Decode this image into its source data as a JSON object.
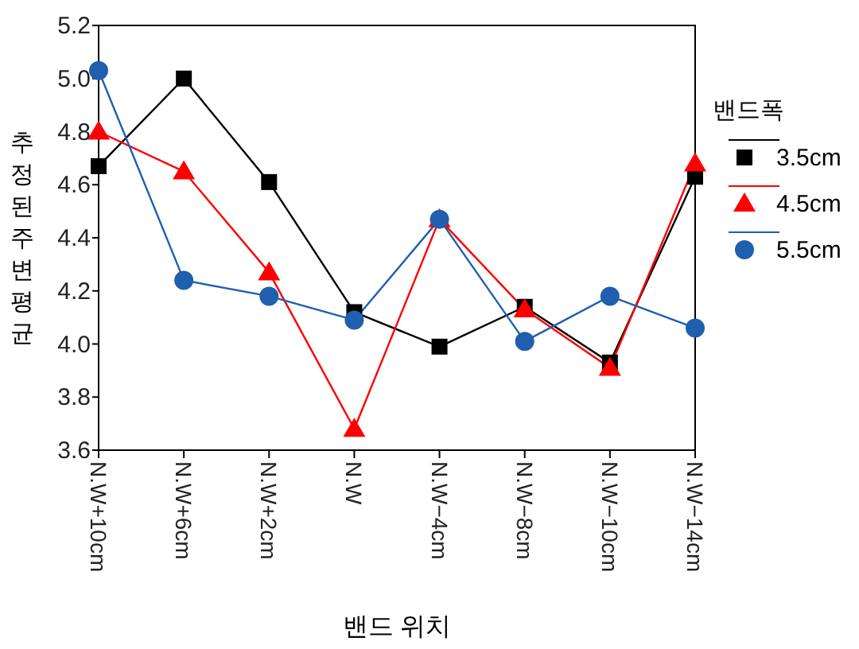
{
  "chart_data": {
    "type": "line",
    "xlabel": "밴드 위치",
    "ylabel": "추정된주변평균",
    "legend_title": "밴드폭",
    "categories": [
      "N.W+10cm",
      "N.W+6cm",
      "N.W+2cm",
      "N.W",
      "N.W−4cm",
      "N.W−8cm",
      "N.W−10cm",
      "N.W−14cm"
    ],
    "series": [
      {
        "name": "3.5cm",
        "color": "#000000",
        "marker": "square",
        "values": [
          4.67,
          5.0,
          4.61,
          4.12,
          3.99,
          4.14,
          3.93,
          4.63
        ]
      },
      {
        "name": "4.5cm",
        "color": "#ff0000",
        "marker": "triangle",
        "values": [
          4.8,
          4.65,
          4.27,
          3.68,
          4.47,
          4.13,
          3.91,
          4.68
        ]
      },
      {
        "name": "5.5cm",
        "color": "#1f5fae",
        "marker": "circle",
        "values": [
          5.03,
          4.24,
          4.18,
          4.09,
          4.47,
          4.01,
          4.18,
          4.06
        ]
      }
    ],
    "ylim": [
      3.6,
      5.2
    ],
    "yticks": [
      3.6,
      3.8,
      {
        "value": 4.0,
        "label": "4.0"
      },
      4.2,
      4.4,
      4.6,
      4.8,
      {
        "value": 5.0,
        "label": "5.0"
      },
      5.2
    ],
    "grid": false,
    "legend": "right",
    "line_style": "solid"
  }
}
